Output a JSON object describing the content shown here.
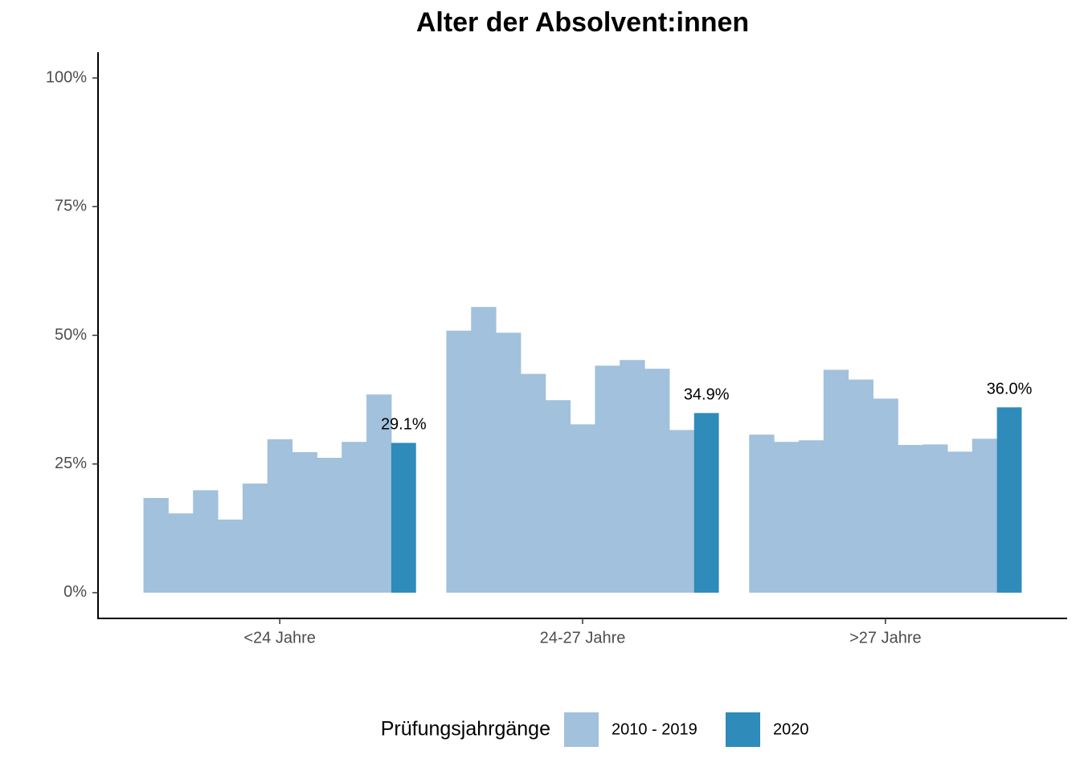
{
  "chart_data": {
    "type": "bar",
    "title": "Alter der Absolvent:innen",
    "categories": [
      "<24 Jahre",
      "24-27 Jahre",
      ">27 Jahre"
    ],
    "legend_title": "Prüfungsjahrgänge",
    "series": [
      {
        "name": "2010 - 2019",
        "color": "#a1c1dc",
        "values": [
          [
            18.4,
            15.4,
            19.9,
            14.2,
            21.2,
            29.8,
            27.3,
            26.2,
            29.3,
            38.5
          ],
          [
            50.9,
            55.5,
            50.5,
            42.5,
            37.4,
            32.7,
            44.1,
            45.2,
            43.5,
            31.6
          ],
          [
            30.7,
            29.3,
            29.6,
            43.3,
            41.4,
            37.7,
            28.7,
            28.8,
            27.4,
            29.9
          ]
        ]
      },
      {
        "name": "2020",
        "color": "#2e8bba",
        "values": [
          29.1,
          34.9,
          36.0
        ],
        "value_labels": [
          "29.1%",
          "34.9%",
          "36.0%"
        ]
      }
    ],
    "ylim": [
      -5,
      105
    ],
    "yticks": [
      {
        "value": 0,
        "label": "0%"
      },
      {
        "value": 25,
        "label": "25%"
      },
      {
        "value": 50,
        "label": "50%"
      },
      {
        "value": 75,
        "label": "75%"
      },
      {
        "value": 100,
        "label": "100%"
      }
    ],
    "legend": "bottom",
    "grid": false
  }
}
